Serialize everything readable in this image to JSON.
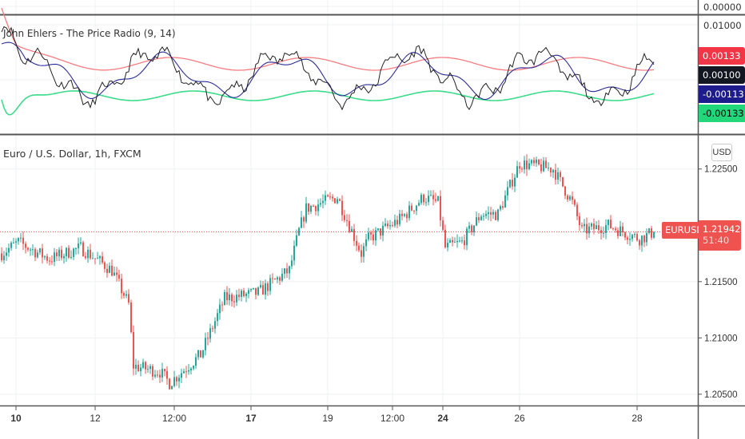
{
  "indicator": {
    "title": "John Ehlers - The Price Radio (9, 14)",
    "top_pane_label": "0.00000",
    "axis_label": "0.01000",
    "tags": [
      {
        "value": "0.00133",
        "color": "#f23645"
      },
      {
        "value": "0.00100",
        "color": "#131722"
      },
      {
        "value": "-0.00113",
        "color": "#1e1b8c"
      },
      {
        "value": "-0.00133",
        "color": "#22d67a"
      }
    ],
    "series_colors": {
      "upper": "#f77c80",
      "lower": "#3bdc8a",
      "signal": "#2c2c9a",
      "price_radio": "#222222"
    }
  },
  "main": {
    "title": "Euro / U.S. Dollar, 1h, FXCM",
    "currency_button": "USD",
    "symbol_tag": "EURUSD",
    "last_price": "1.21942",
    "countdown": "51:40",
    "up_color": "#26a69a",
    "down_color": "#ef5350"
  },
  "chart_data": {
    "type": "candlestick",
    "title": "Euro / U.S. Dollar, 1h, FXCM",
    "y_ticks": [
      "1.22500",
      "1.21500",
      "1.21000",
      "1.20500"
    ],
    "y_tick_values": [
      1.225,
      1.215,
      1.21,
      1.205
    ],
    "ylim": [
      1.204,
      1.2281
    ],
    "x_ticks": [
      {
        "label": "10",
        "bar": 6,
        "bold": true
      },
      {
        "label": "12",
        "bar": 39,
        "bold": false
      },
      {
        "label": "12:00",
        "bar": 72,
        "bold": false
      },
      {
        "label": "17",
        "bar": 104,
        "bold": true
      },
      {
        "label": "19",
        "bar": 136,
        "bold": false
      },
      {
        "label": "12:00",
        "bar": 163,
        "bold": false
      },
      {
        "label": "24",
        "bar": 184,
        "bold": true
      },
      {
        "label": "26",
        "bar": 216,
        "bold": false
      },
      {
        "label": "28",
        "bar": 265,
        "bold": false
      }
    ],
    "last_value": 1.21942,
    "price_path_waypoints": [
      [
        0,
        1.2175
      ],
      [
        7,
        1.2185
      ],
      [
        20,
        1.217
      ],
      [
        33,
        1.218
      ],
      [
        46,
        1.216
      ],
      [
        53,
        1.213
      ],
      [
        55,
        1.2075
      ],
      [
        66,
        1.207
      ],
      [
        70,
        1.206
      ],
      [
        83,
        1.2085
      ],
      [
        93,
        1.2135
      ],
      [
        107,
        1.214
      ],
      [
        120,
        1.216
      ],
      [
        124,
        1.2195
      ],
      [
        127,
        1.2215
      ],
      [
        140,
        1.2225
      ],
      [
        150,
        1.2175
      ],
      [
        153,
        1.2188
      ],
      [
        166,
        1.2205
      ],
      [
        176,
        1.2225
      ],
      [
        182,
        1.222
      ],
      [
        185,
        1.218
      ],
      [
        192,
        1.2185
      ],
      [
        200,
        1.221
      ],
      [
        207,
        1.221
      ],
      [
        216,
        1.2255
      ],
      [
        230,
        1.225
      ],
      [
        238,
        1.222
      ],
      [
        242,
        1.2195
      ],
      [
        253,
        1.22
      ],
      [
        266,
        1.2188
      ],
      [
        272,
        1.2194
      ]
    ]
  }
}
